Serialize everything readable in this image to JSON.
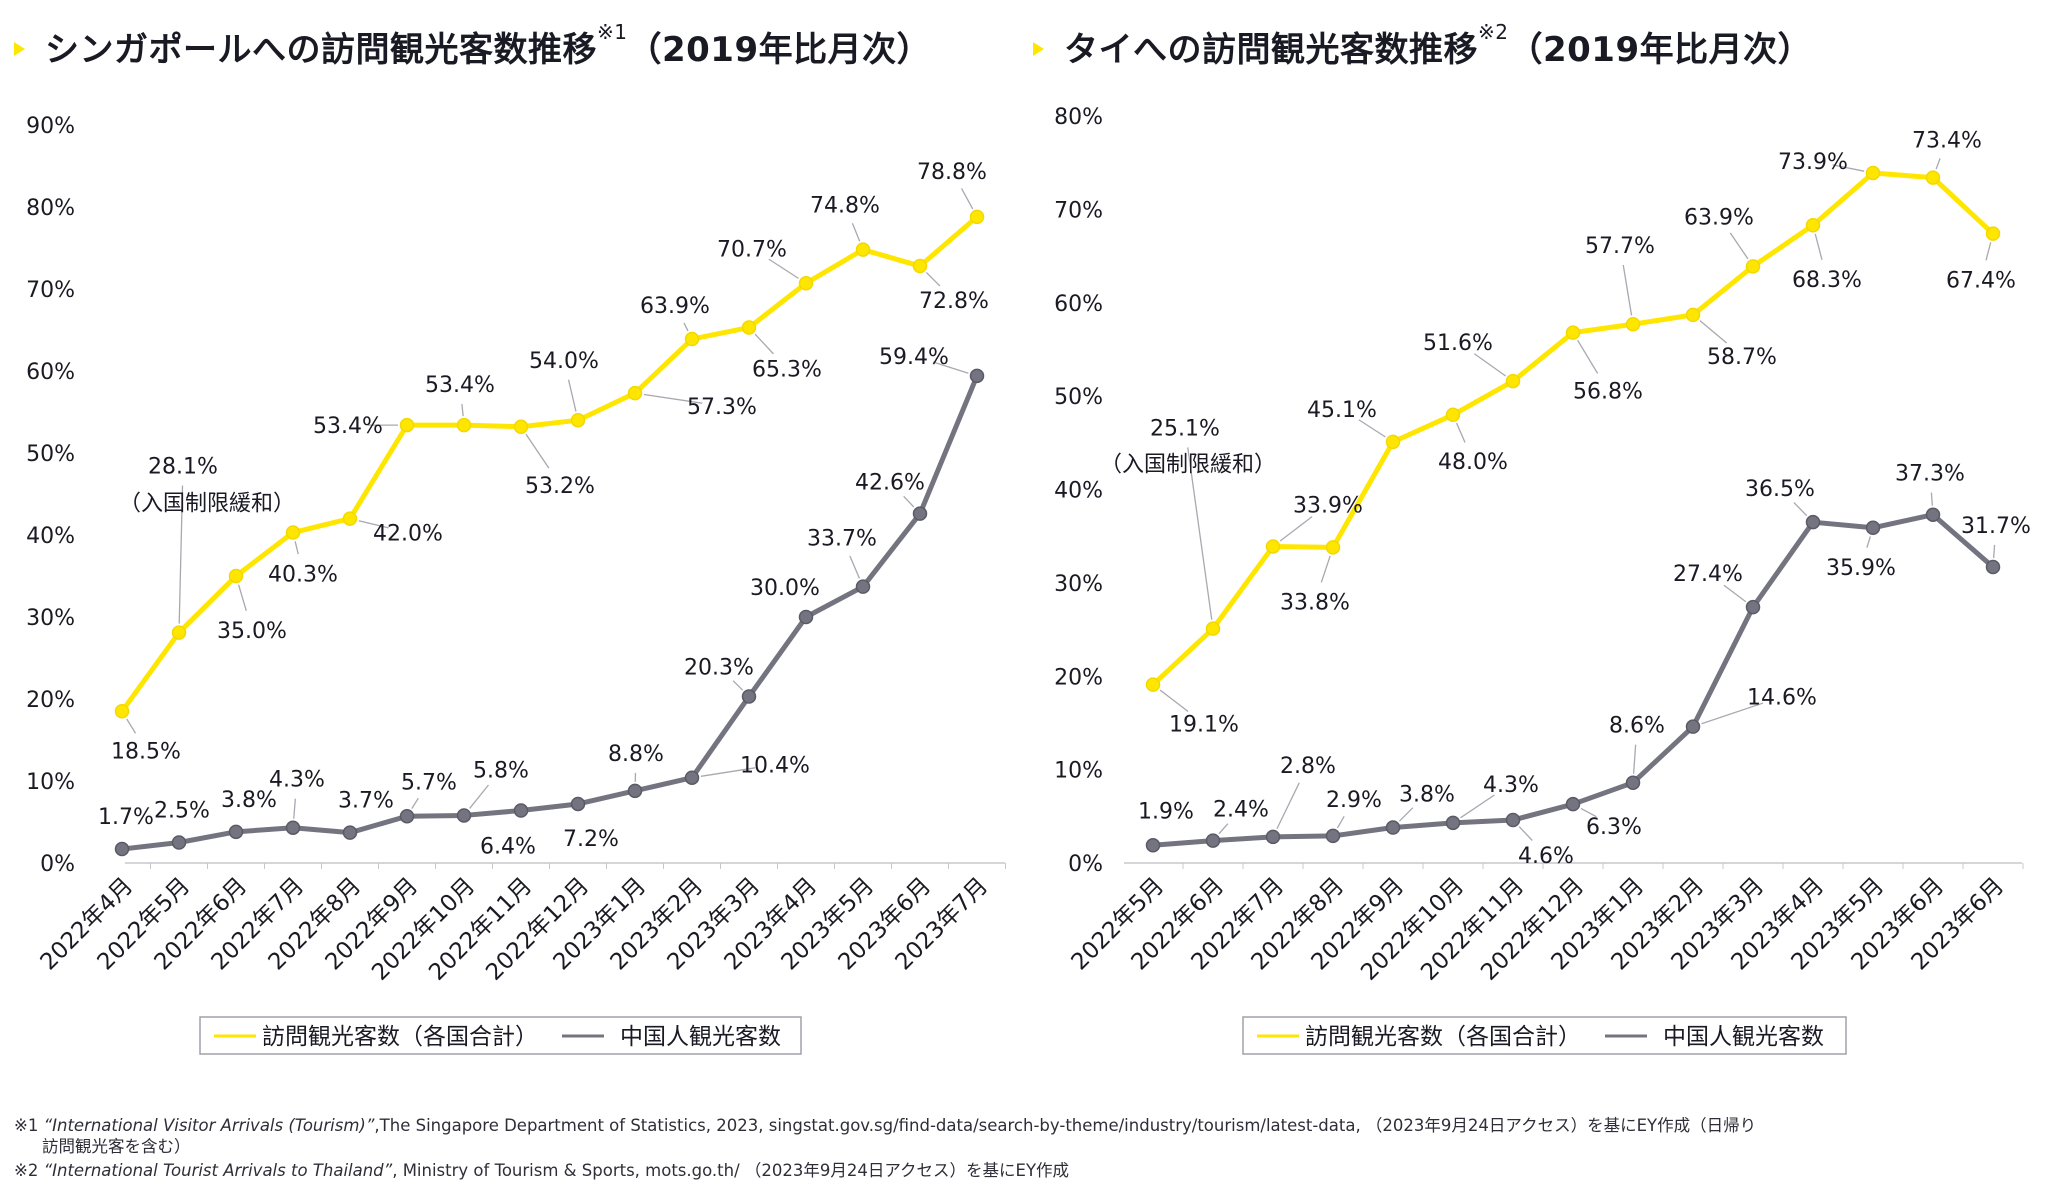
{
  "charts": [
    {
      "title": "シンガポールへの訪問観光客数推移",
      "title_note": "※1",
      "title_suffix": "（2019年比月次）",
      "y_ticks": [
        "0%",
        "10%",
        "20%",
        "30%",
        "40%",
        "50%",
        "60%",
        "70%",
        "80%",
        "90%"
      ],
      "categories": [
        "2022年4月",
        "2022年5月",
        "2022年6月",
        "2022年7月",
        "2022年8月",
        "2022年9月",
        "2022年10月",
        "2022年11月",
        "2022年12月",
        "2023年1月",
        "2023年2月",
        "2023年3月",
        "2023年4月",
        "2023年5月",
        "2023年6月",
        "2023年7月"
      ],
      "annotation": "（入国制限緩和）",
      "legend": [
        "訪問観光客数（各国合計）",
        "中国人観光客数"
      ],
      "series": [
        {
          "name": "訪問観光客数（各国合計）",
          "color": "#FFE600",
          "values": [
            18.5,
            28.1,
            35.0,
            40.3,
            42.0,
            53.4,
            53.4,
            53.2,
            54.0,
            57.3,
            63.9,
            65.3,
            70.7,
            74.8,
            72.8,
            78.8
          ],
          "labels": [
            "18.5%",
            "28.1%",
            "35.0%",
            "40.3%",
            "42.0%",
            "53.4%",
            "53.4%",
            "53.2%",
            "54.0%",
            "57.3%",
            "63.9%",
            "65.3%",
            "70.7%",
            "74.8%",
            "72.8%",
            "78.8%"
          ]
        },
        {
          "name": "中国人観光客数",
          "color": "#747480",
          "values": [
            1.7,
            2.5,
            3.8,
            4.3,
            3.7,
            5.7,
            5.8,
            6.4,
            7.2,
            8.8,
            10.4,
            20.3,
            30.0,
            33.7,
            42.6,
            59.4
          ],
          "labels": [
            "1.7%",
            "2.5%",
            "3.8%",
            "4.3%",
            "3.7%",
            "5.7%",
            "5.8%",
            "6.4%",
            "7.2%",
            "8.8%",
            "10.4%",
            "20.3%",
            "30.0%",
            "33.7%",
            "42.6%",
            "59.4%"
          ]
        }
      ]
    },
    {
      "title": "タイへの訪問観光客数推移",
      "title_note": "※2",
      "title_suffix": "（2019年比月次）",
      "y_ticks": [
        "0%",
        "10%",
        "20%",
        "30%",
        "40%",
        "50%",
        "60%",
        "70%",
        "80%"
      ],
      "categories": [
        "2022年5月",
        "2022年6月",
        "2022年7月",
        "2022年8月",
        "2022年9月",
        "2022年10月",
        "2022年11月",
        "2022年12月",
        "2023年1月",
        "2023年2月",
        "2023年3月",
        "2023年4月",
        "2023年5月",
        "2023年6月",
        "2023年6月"
      ],
      "annotation": "（入国制限緩和）",
      "legend": [
        "訪問観光客数（各国合計）",
        "中国人観光客数"
      ],
      "series": [
        {
          "name": "訪問観光客数（各国合計）",
          "color": "#FFE600",
          "values": [
            19.1,
            25.1,
            33.9,
            33.8,
            45.1,
            48.0,
            51.6,
            56.8,
            57.7,
            58.7,
            63.9,
            68.3,
            73.9,
            73.4,
            67.4
          ],
          "labels": [
            "19.1%",
            "25.1%",
            "33.9%",
            "33.8%",
            "45.1%",
            "48.0%",
            "51.6%",
            "56.8%",
            "57.7%",
            "58.7%",
            "63.9%",
            "68.3%",
            "73.9%",
            "73.4%",
            "67.4%"
          ]
        },
        {
          "name": "中国人観光客数",
          "color": "#747480",
          "values": [
            1.9,
            2.4,
            2.8,
            2.9,
            3.8,
            4.3,
            4.6,
            6.3,
            8.6,
            14.6,
            27.4,
            36.5,
            35.9,
            37.3,
            31.7
          ],
          "labels": [
            "1.9%",
            "2.4%",
            "2.8%",
            "2.9%",
            "3.8%",
            "4.3%",
            "4.6%",
            "6.3%",
            "8.6%",
            "14.6%",
            "27.4%",
            "36.5%",
            "35.9%",
            "37.3%",
            "31.7%"
          ]
        }
      ]
    }
  ],
  "chart_data": [
    {
      "type": "line",
      "title": "シンガポールへの訪問観光客数推移（2019年比月次）",
      "ylim": [
        0,
        90
      ],
      "grid": false,
      "legend": "bottom",
      "categories": [
        "2022年4月",
        "2022年5月",
        "2022年6月",
        "2022年7月",
        "2022年8月",
        "2022年9月",
        "2022年10月",
        "2022年11月",
        "2022年12月",
        "2023年1月",
        "2023年2月",
        "2023年3月",
        "2023年4月",
        "2023年5月",
        "2023年6月",
        "2023年7月"
      ],
      "series": [
        {
          "name": "訪問観光客数（各国合計）",
          "values": [
            18.5,
            28.1,
            35.0,
            40.3,
            42.0,
            53.4,
            53.4,
            53.2,
            54.0,
            57.3,
            63.9,
            65.3,
            70.7,
            74.8,
            72.8,
            78.8
          ]
        },
        {
          "name": "中国人観光客数",
          "values": [
            1.7,
            2.5,
            3.8,
            4.3,
            3.7,
            5.7,
            5.8,
            6.4,
            7.2,
            8.8,
            10.4,
            20.3,
            30.0,
            33.7,
            42.6,
            59.4
          ]
        }
      ]
    },
    {
      "type": "line",
      "title": "タイへの訪問観光客数推移（2019年比月次）",
      "ylim": [
        0,
        80
      ],
      "grid": false,
      "legend": "bottom",
      "categories": [
        "2022年5月",
        "2022年6月",
        "2022年7月",
        "2022年8月",
        "2022年9月",
        "2022年10月",
        "2022年11月",
        "2022年12月",
        "2023年1月",
        "2023年2月",
        "2023年3月",
        "2023年4月",
        "2023年5月",
        "2023年6月",
        "2023年6月"
      ],
      "series": [
        {
          "name": "訪問観光客数（各国合計）",
          "values": [
            19.1,
            25.1,
            33.9,
            33.8,
            45.1,
            48.0,
            51.6,
            56.8,
            57.7,
            58.7,
            63.9,
            68.3,
            73.9,
            73.4,
            67.4
          ]
        },
        {
          "name": "中国人観光客数",
          "values": [
            1.9,
            2.4,
            2.8,
            2.9,
            3.8,
            4.3,
            4.6,
            6.3,
            8.6,
            14.6,
            27.4,
            36.5,
            35.9,
            37.3,
            31.7
          ]
        }
      ]
    }
  ],
  "footnotes": [
    {
      "mark": "※1",
      "source": "“International Visitor Arrivals (Tourism)”",
      "rest": ",The Singapore Department of Statistics, 2023, singstat.gov.sg/find-data/search-by-theme/industry/tourism/latest-data, （2023年9月24日アクセス）を基にEY作成（日帰り",
      "rest2": "訪問観光客を含む）"
    },
    {
      "mark": "※2",
      "source": "“International Tourist Arrivals to Thailand”",
      "rest": ", Ministry of Tourism & Sports, mots.go.th/ （2023年9月24日アクセス）を基にEY作成"
    }
  ]
}
